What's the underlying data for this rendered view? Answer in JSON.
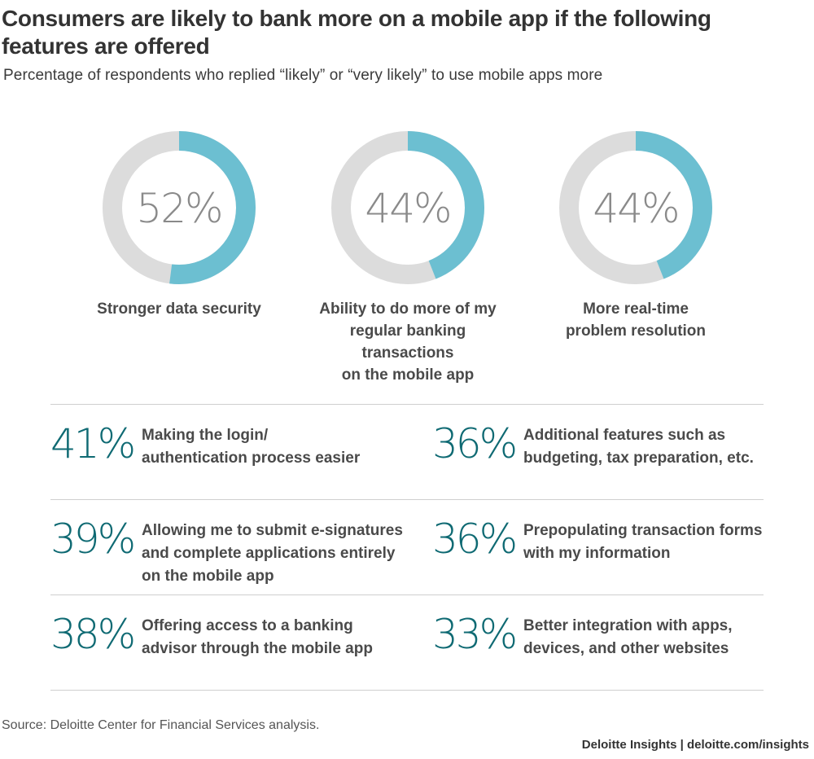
{
  "title": "Consumers are likely to bank more on a mobile app if the following features are offered",
  "subtitle": "Percentage of respondents who replied “likely” or “very likely” to use mobile apps more",
  "colors": {
    "accent": "#6cbfd1",
    "track": "#dcdcdc",
    "big_number": "#0f6a73",
    "donut_number": "#8a8a8a"
  },
  "chart_data": [
    {
      "type": "pie",
      "title": "",
      "categories": [
        "Stronger data security",
        "Ability to do more of my regular banking transactions on the mobile app",
        "More real-time problem resolution"
      ],
      "values": [
        52,
        44,
        44
      ],
      "unit": "%",
      "labels": [
        "52%",
        "44%",
        "44%"
      ]
    },
    {
      "type": "table",
      "title": "",
      "categories": [
        "Making the login/ authentication process easier",
        "Additional features such as budgeting, tax preparation, etc.",
        "Allowing me to submit e-signatures and complete applications entirely on the mobile app",
        "Prepopulating transaction forms with my information",
        "Offering access to a banking advisor through the mobile app",
        "Better integration with apps, devices, and other websites"
      ],
      "values": [
        41,
        36,
        39,
        36,
        38,
        33
      ],
      "unit": "%"
    }
  ],
  "donuts": [
    {
      "pct": "52%",
      "value": 52,
      "label_lines": [
        "Stronger data security"
      ]
    },
    {
      "pct": "44%",
      "value": 44,
      "label_lines": [
        "Ability to do more of my",
        "regular banking transactions",
        "on the mobile app"
      ]
    },
    {
      "pct": "44%",
      "value": 44,
      "label_lines": [
        "More real-time",
        "problem resolution"
      ]
    }
  ],
  "stats": [
    {
      "pct": "41%",
      "lines": [
        "Making the login/",
        "authentication process easier"
      ]
    },
    {
      "pct": "36%",
      "lines": [
        "Additional features such as",
        "budgeting, tax preparation, etc."
      ]
    },
    {
      "pct": "39%",
      "lines": [
        "Allowing me to submit e-signatures",
        "and complete applications entirely",
        "on the mobile app"
      ]
    },
    {
      "pct": "36%",
      "lines": [
        "Prepopulating transaction forms",
        "with my information"
      ]
    },
    {
      "pct": "38%",
      "lines": [
        "Offering access to a banking",
        "advisor through the mobile app"
      ]
    },
    {
      "pct": "33%",
      "lines": [
        "Better integration with apps,",
        "devices, and other websites"
      ]
    }
  ],
  "source": "Source: Deloitte Center for Financial Services analysis.",
  "credit": "Deloitte Insights | deloitte.com/insights"
}
